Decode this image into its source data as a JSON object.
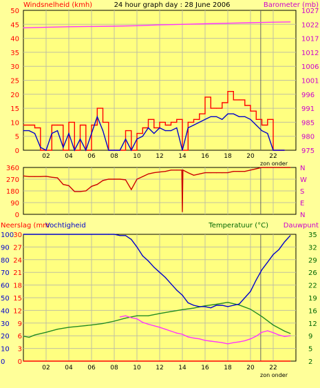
{
  "header": {
    "left_label": "Windsnelheid (kmh)",
    "title": "24 hour graph day : 28 June 2006",
    "right_label": "Barometer (mb)"
  },
  "colors": {
    "background": "#ffff99",
    "plot": "#ffff80",
    "grid": "#c0c0a0",
    "gust": "#ff0000",
    "wind_avg": "#0000cc",
    "barometer": "#ff33ff",
    "direction": "#cc0000",
    "humidity": "#0000cc",
    "temperature": "#228b22",
    "dewpoint": "#ff33ff",
    "rain": "#ff0000",
    "axis_left": "#ff0000",
    "axis_right": "#cc00cc",
    "axis_temp": "#006600",
    "axis_rain": "#ff0000"
  },
  "x_ticks": [
    "02",
    "04",
    "06",
    "08",
    "10",
    "12",
    "14",
    "16",
    "18",
    "20",
    "22"
  ],
  "sunset_label": "zon onder",
  "chart_data": [
    {
      "type": "line",
      "x_unit": "hour",
      "y_left_ticks": [
        "0",
        "5",
        "10",
        "15",
        "20",
        "25",
        "30",
        "35",
        "40",
        "45",
        "50"
      ],
      "y_right_ticks": [
        "975",
        "980",
        "985",
        "991",
        "996",
        "1001",
        "1006",
        "1012",
        "1017",
        "1022",
        "1027"
      ],
      "ylim_left": [
        0,
        50
      ],
      "ylim_right": [
        975,
        1027
      ],
      "series": [
        {
          "name": "Windsnelheid",
          "role": "gust",
          "x": [
            0,
            0.5,
            1,
            1.5,
            2,
            2.5,
            3,
            3.5,
            4,
            4.5,
            5,
            5.5,
            6,
            6.5,
            7,
            7.5,
            8,
            8.5,
            9,
            9.5,
            10,
            10.5,
            11,
            11.5,
            12,
            12.5,
            13,
            13.5,
            14,
            14.5,
            15,
            15.5,
            16,
            16.5,
            17,
            17.5,
            18,
            18.5,
            19,
            19.5,
            20,
            20.5,
            21,
            21.5,
            22,
            22.5,
            23
          ],
          "values": [
            9,
            9,
            8,
            0,
            0,
            9,
            9,
            0,
            10,
            0,
            9,
            0,
            9,
            15,
            10,
            0,
            0,
            0,
            7,
            0,
            6,
            8,
            11,
            8,
            10,
            9,
            10,
            11,
            0,
            10,
            11,
            13,
            19,
            15,
            15,
            17,
            21,
            18,
            18,
            16,
            14,
            11,
            9,
            11,
            0,
            0,
            0
          ]
        },
        {
          "name": "Windsnelheid",
          "role": "average",
          "x": [
            0,
            0.5,
            1,
            1.5,
            2,
            2.5,
            3,
            3.5,
            4,
            4.5,
            5,
            5.5,
            6,
            6.5,
            7,
            7.5,
            8,
            8.5,
            9,
            9.5,
            10,
            10.5,
            11,
            11.5,
            12,
            12.5,
            13,
            13.5,
            14,
            14.5,
            15,
            15.5,
            16,
            16.5,
            17,
            17.5,
            18,
            18.5,
            19,
            19.5,
            20,
            20.5,
            21,
            21.5,
            22,
            22.5,
            23
          ],
          "values": [
            7,
            7,
            6,
            1,
            0,
            6,
            7,
            1,
            6,
            0,
            4,
            0,
            6,
            12,
            7,
            0,
            0,
            0,
            4,
            0,
            4,
            5,
            8,
            6,
            8,
            7,
            7,
            8,
            0,
            8,
            9,
            10,
            11,
            12,
            12,
            11,
            13,
            13,
            12,
            12,
            11,
            9,
            7,
            6,
            0,
            0,
            0
          ]
        },
        {
          "name": "Barometer",
          "axis": "right",
          "x": [
            0,
            2,
            4,
            6,
            8,
            10,
            12,
            14,
            16,
            18,
            20,
            22,
            23.5
          ],
          "values": [
            1020.5,
            1020.7,
            1020.9,
            1021.0,
            1021.1,
            1021.3,
            1021.6,
            1021.8,
            1022.0,
            1022.2,
            1022.4,
            1022.6,
            1022.7
          ]
        }
      ]
    },
    {
      "type": "line",
      "x_unit": "hour",
      "y_ticks": [
        "360",
        "270",
        "180",
        "90",
        "0"
      ],
      "y_right_labels": [
        "N",
        "W",
        "S",
        "E",
        "N"
      ],
      "ylim": [
        0,
        360
      ],
      "series": [
        {
          "role": "direction",
          "x": [
            0,
            0.5,
            1,
            1.5,
            2,
            2.5,
            3,
            3.5,
            4,
            4.5,
            5,
            5.5,
            6,
            6.5,
            7,
            7.5,
            8,
            8.5,
            9,
            9.5,
            10,
            10.5,
            11,
            11.5,
            12,
            12.5,
            13,
            13.5,
            13.95,
            14.0,
            14.05,
            14.5,
            15,
            15.5,
            16,
            16.5,
            17,
            17.5,
            18,
            18.5,
            19,
            19.5,
            20,
            20.5,
            21,
            21.5,
            22,
            22.5,
            23,
            23.5
          ],
          "values": [
            295,
            290,
            290,
            290,
            292,
            285,
            280,
            230,
            220,
            175,
            175,
            180,
            215,
            230,
            260,
            270,
            270,
            270,
            265,
            190,
            270,
            290,
            310,
            320,
            325,
            330,
            340,
            340,
            340,
            20,
            340,
            320,
            300,
            310,
            320,
            320,
            320,
            320,
            320,
            330,
            330,
            330,
            340,
            350,
            360,
            360,
            360,
            360,
            360,
            360
          ]
        }
      ]
    },
    {
      "type": "line",
      "x_unit": "hour",
      "axis_titles": {
        "left": "Neerslag (mm",
        "left2": "Vochtigheid",
        "right": "Temperatuur (°C)",
        "right2": "Dauwpunt"
      },
      "y_rain_ticks": [
        "30",
        "27",
        "24",
        "21",
        "18",
        "15",
        "12",
        "9",
        "6",
        "3",
        "0"
      ],
      "y_humidity_ticks": [
        "100",
        "90",
        "80",
        "70",
        "60",
        "50",
        "40",
        "30",
        "20",
        "10",
        "0"
      ],
      "y_temp_ticks": [
        "35",
        "32",
        "29",
        "26",
        "22",
        "19",
        "16",
        "12",
        "9",
        "5",
        "2"
      ],
      "ylim_humidity": [
        0,
        100
      ],
      "ylim_rain": [
        0,
        30
      ],
      "ylim_temp": [
        2,
        35
      ],
      "series": [
        {
          "name": "Vochtigheid",
          "axis": "humidity",
          "x": [
            0,
            2,
            4,
            6,
            7.5,
            8,
            8.5,
            9,
            9.5,
            10,
            10.5,
            11,
            11.5,
            12,
            12.5,
            13,
            13.5,
            14,
            14.5,
            15,
            15.5,
            16,
            16.5,
            17,
            17.5,
            18,
            18.5,
            19,
            19.5,
            20,
            20.5,
            21,
            21.5,
            22,
            22.5,
            23,
            23.5
          ],
          "values": [
            100,
            100,
            100,
            100,
            100,
            100,
            99,
            99,
            96,
            90,
            83,
            79,
            74,
            70,
            66,
            61,
            56,
            52,
            46,
            44,
            43,
            43,
            42,
            44,
            44,
            43,
            44,
            45,
            50,
            55,
            64,
            72,
            78,
            84,
            88,
            94,
            99
          ]
        },
        {
          "name": "Temperatuur",
          "axis": "temp",
          "x": [
            0,
            0.5,
            1,
            2,
            3,
            4,
            5,
            6,
            7,
            8,
            9,
            10,
            11,
            12,
            13,
            14,
            15,
            16,
            17,
            18,
            19,
            20,
            21,
            22,
            23,
            23.5
          ],
          "values": [
            8.5,
            8.2,
            8.8,
            9.5,
            10.3,
            10.8,
            11.1,
            11.4,
            11.8,
            12.4,
            13.2,
            13.8,
            13.8,
            14.4,
            14.9,
            15.4,
            15.8,
            16.4,
            16.8,
            17.3,
            16.6,
            15.5,
            13.6,
            11.4,
            9.8,
            9.2
          ]
        },
        {
          "name": "Dauwpunt",
          "axis": "temp",
          "x": [
            8.5,
            9,
            9.5,
            10,
            10.5,
            11,
            11.5,
            12,
            12.5,
            13,
            13.5,
            14,
            14.5,
            15,
            15.5,
            16,
            16.5,
            17,
            17.5,
            18,
            18.5,
            19,
            19.5,
            20,
            20.5,
            21,
            21.5,
            22,
            22.5,
            23,
            23.5
          ],
          "values": [
            13.5,
            13.8,
            13.3,
            13.0,
            12.1,
            11.6,
            11.2,
            10.8,
            10.3,
            9.8,
            9.3,
            9.0,
            8.3,
            8.0,
            7.8,
            7.4,
            7.2,
            7.0,
            6.8,
            6.5,
            6.8,
            7.0,
            7.3,
            7.8,
            8.5,
            9.5,
            9.9,
            9.4,
            8.8,
            8.4,
            8.6
          ]
        },
        {
          "name": "Neerslag",
          "axis": "rain",
          "x": [
            0,
            23.5
          ],
          "values": [
            0,
            0
          ]
        }
      ]
    }
  ]
}
